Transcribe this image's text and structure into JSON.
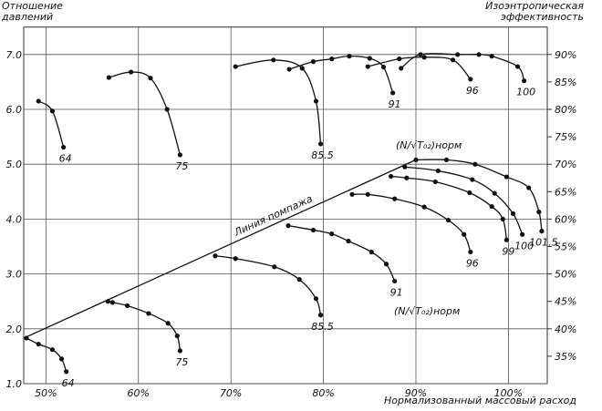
{
  "chart_data": {
    "type": "line",
    "ylabel": "Отношение давлений",
    "y2label": "Изоэнтропическая эффективность",
    "xlabel": "Нормализованный массовый расход",
    "annotations": [
      "(N/√T₀₂)норм",
      "(N/√T₀₂)норм"
    ],
    "xlim": [
      47.6,
      104.2
    ],
    "ylim": [
      1.0,
      7.5
    ],
    "y2lim": [
      30,
      95
    ],
    "xticks": [
      {
        "value": 50,
        "label": "50%"
      },
      {
        "value": 60,
        "label": "60%"
      },
      {
        "value": 70,
        "label": "70%"
      },
      {
        "value": 80,
        "label": "80%"
      },
      {
        "value": 90,
        "label": "90%"
      },
      {
        "value": 100,
        "label": "100%"
      }
    ],
    "yticks": [
      {
        "value": 1,
        "label": "1.0"
      },
      {
        "value": 2,
        "label": "2.0"
      },
      {
        "value": 3,
        "label": "3.0"
      },
      {
        "value": 4,
        "label": "4.0"
      },
      {
        "value": 5,
        "label": "5.0"
      },
      {
        "value": 6,
        "label": "6.0"
      },
      {
        "value": 7,
        "label": "7.0"
      }
    ],
    "y2ticks": [
      {
        "value": 35,
        "label": "35%"
      },
      {
        "value": 40,
        "label": "40%"
      },
      {
        "value": 45,
        "label": "45%"
      },
      {
        "value": 50,
        "label": "50%"
      },
      {
        "value": 55,
        "label": "55%"
      },
      {
        "value": 60,
        "label": "60%"
      },
      {
        "value": 65,
        "label": "65%"
      },
      {
        "value": 70,
        "label": "70%"
      },
      {
        "value": 75,
        "label": "75%"
      },
      {
        "value": 80,
        "label": "80%"
      },
      {
        "value": 85,
        "label": "85%"
      },
      {
        "value": 90,
        "label": "90%"
      }
    ],
    "grid": true,
    "series": [
      {
        "name": "64",
        "color": "#111111",
        "x": [
          47.9,
          49.2,
          50.7,
          51.7,
          52.2
        ],
        "values": [
          1.83,
          1.72,
          1.62,
          1.45,
          1.22
        ]
      },
      {
        "name": "75",
        "color": "#111111",
        "x": [
          56.7,
          57.2,
          58.8,
          61.1,
          63.2,
          64.2,
          64.5
        ],
        "values": [
          2.5,
          2.48,
          2.42,
          2.28,
          2.1,
          1.87,
          1.6
        ]
      },
      {
        "name": "85.5",
        "color": "#111111",
        "x": [
          68.3,
          70.5,
          74.7,
          77.4,
          79.2,
          79.7
        ],
        "values": [
          3.33,
          3.28,
          3.13,
          2.9,
          2.55,
          2.25
        ]
      },
      {
        "name": "91",
        "color": "#111111",
        "x": [
          76.2,
          78.9,
          80.9,
          82.7,
          85.2,
          86.8,
          87.7
        ],
        "values": [
          3.88,
          3.8,
          3.73,
          3.6,
          3.4,
          3.18,
          2.87
        ]
      },
      {
        "name": "96",
        "color": "#111111",
        "x": [
          83.1,
          84.8,
          87.7,
          90.9,
          93.5,
          95.2,
          95.9
        ],
        "values": [
          4.45,
          4.45,
          4.37,
          4.22,
          3.98,
          3.72,
          3.4
        ]
      },
      {
        "name": "99",
        "color": "#111111",
        "x": [
          87.3,
          89.0,
          92.1,
          95.8,
          98.2,
          99.4,
          99.8
        ],
        "values": [
          4.78,
          4.75,
          4.68,
          4.48,
          4.23,
          4.0,
          3.62
        ]
      },
      {
        "name": "100",
        "color": "#111111",
        "x": [
          88.8,
          92.4,
          96.1,
          98.5,
          100.5,
          101.5
        ],
        "values": [
          4.95,
          4.88,
          4.72,
          4.47,
          4.1,
          3.72
        ]
      },
      {
        "name": "101.5",
        "color": "#111111",
        "x": [
          90.0,
          93.3,
          96.4,
          99.8,
          102.2,
          103.3,
          103.6
        ],
        "values": [
          5.08,
          5.08,
          5.0,
          4.77,
          4.57,
          4.13,
          3.78
        ]
      },
      {
        "name": "Линия помпажа",
        "color": "#111111",
        "markers": false,
        "x": [
          47.6,
          90.0
        ],
        "values": [
          1.83,
          5.08
        ]
      },
      {
        "name": "64",
        "color": "#111111",
        "axis": "y2",
        "x": [
          49.2,
          50.7,
          51.9
        ],
        "values": [
          81.5,
          79.7,
          73.1
        ]
      },
      {
        "name": "75",
        "color": "#111111",
        "axis": "y2",
        "x": [
          56.8,
          59.2,
          61.3,
          63.1,
          64.5
        ],
        "values": [
          85.8,
          86.8,
          85.7,
          80.0,
          71.7
        ]
      },
      {
        "name": "85.5",
        "color": "#111111",
        "axis": "y2",
        "x": [
          70.5,
          74.6,
          77.7,
          79.2,
          79.7
        ],
        "values": [
          87.8,
          89.0,
          87.5,
          81.5,
          73.7
        ]
      },
      {
        "name": "91",
        "color": "#111111",
        "axis": "y2",
        "x": [
          76.3,
          78.9,
          80.9,
          82.8,
          85.0,
          86.5,
          87.5
        ],
        "values": [
          87.3,
          88.7,
          89.2,
          89.7,
          89.3,
          87.7,
          83.0
        ]
      },
      {
        "name": "96",
        "color": "#111111",
        "axis": "y2",
        "x": [
          84.8,
          88.2,
          90.9,
          94.0,
          95.9
        ],
        "values": [
          87.8,
          89.2,
          89.5,
          89.0,
          85.5
        ]
      },
      {
        "name": "100",
        "color": "#111111",
        "axis": "y2",
        "x": [
          88.4,
          90.5,
          94.5,
          96.8,
          98.2,
          101.0,
          101.7
        ],
        "values": [
          87.5,
          90.0,
          90.0,
          90.0,
          89.7,
          87.8,
          85.2
        ]
      }
    ]
  }
}
